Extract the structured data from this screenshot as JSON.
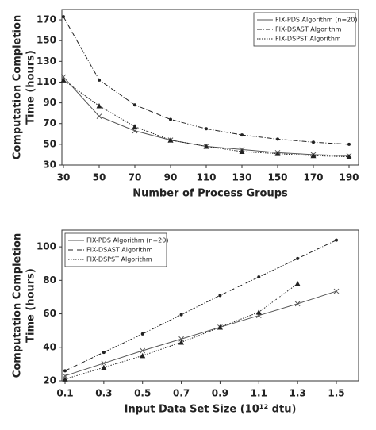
{
  "chart_data": [
    {
      "type": "line",
      "xlabel": "Number of Process Groups",
      "ylabel": [
        "Computation Completion",
        "Time (hours)"
      ],
      "x": [
        30,
        50,
        70,
        90,
        110,
        130,
        150,
        170,
        190
      ],
      "xlim": [
        30,
        190
      ],
      "xticks": [
        30,
        50,
        70,
        90,
        110,
        130,
        150,
        170,
        190
      ],
      "ylim": [
        30,
        180
      ],
      "yticks": [
        30,
        50,
        70,
        90,
        110,
        130,
        150,
        170
      ],
      "legend": "upper right",
      "series": [
        {
          "name": "FIX-PDS Algorithm (n=20)",
          "color": "#555555",
          "style": "solid",
          "marker": "x",
          "values": [
            115,
            77,
            63,
            54,
            48,
            45,
            42,
            40,
            39
          ]
        },
        {
          "name": "FIX-DSAST Algorithm",
          "color": "#222222",
          "style": "dashdot",
          "marker": "dot",
          "values": [
            173,
            112,
            88,
            74,
            65,
            59,
            55,
            52,
            50
          ]
        },
        {
          "name": "FIX-DSPST Algorithm",
          "color": "#222222",
          "style": "dotted",
          "marker": "triangle",
          "values": [
            112,
            87,
            67,
            54,
            48,
            43,
            41,
            39,
            38
          ]
        }
      ]
    },
    {
      "type": "line",
      "xlabel": "Input Data Set Size (10¹² dtu)",
      "ylabel": [
        "Computation Completion",
        "Time (hours)"
      ],
      "x": [
        0.1,
        0.3,
        0.5,
        0.7,
        0.9,
        1.1,
        1.3,
        1.5
      ],
      "xlim": [
        0.1,
        1.5
      ],
      "xticks": [
        0.1,
        0.3,
        0.5,
        0.7,
        0.9,
        1.1,
        1.3,
        1.5
      ],
      "ylim": [
        20,
        110
      ],
      "yticks": [
        20,
        40,
        60,
        80,
        100
      ],
      "legend": "upper left",
      "series": [
        {
          "name": "FIX-PDS Algorithm (n=20)",
          "color": "#555555",
          "style": "solid",
          "marker": "x",
          "values": [
            23,
            30.5,
            38,
            45,
            52,
            59,
            66,
            73.5
          ]
        },
        {
          "name": "FIX-DSAST Algorithm",
          "color": "#222222",
          "style": "dashdot",
          "marker": "dot",
          "values": [
            26,
            37,
            48,
            59.5,
            71,
            82,
            93,
            104
          ]
        },
        {
          "name": "FIX-DSPST Algorithm",
          "color": "#222222",
          "style": "dotted",
          "marker": "triangle",
          "values": [
            21,
            28,
            35,
            43,
            52,
            61,
            78,
            null
          ]
        }
      ]
    }
  ]
}
